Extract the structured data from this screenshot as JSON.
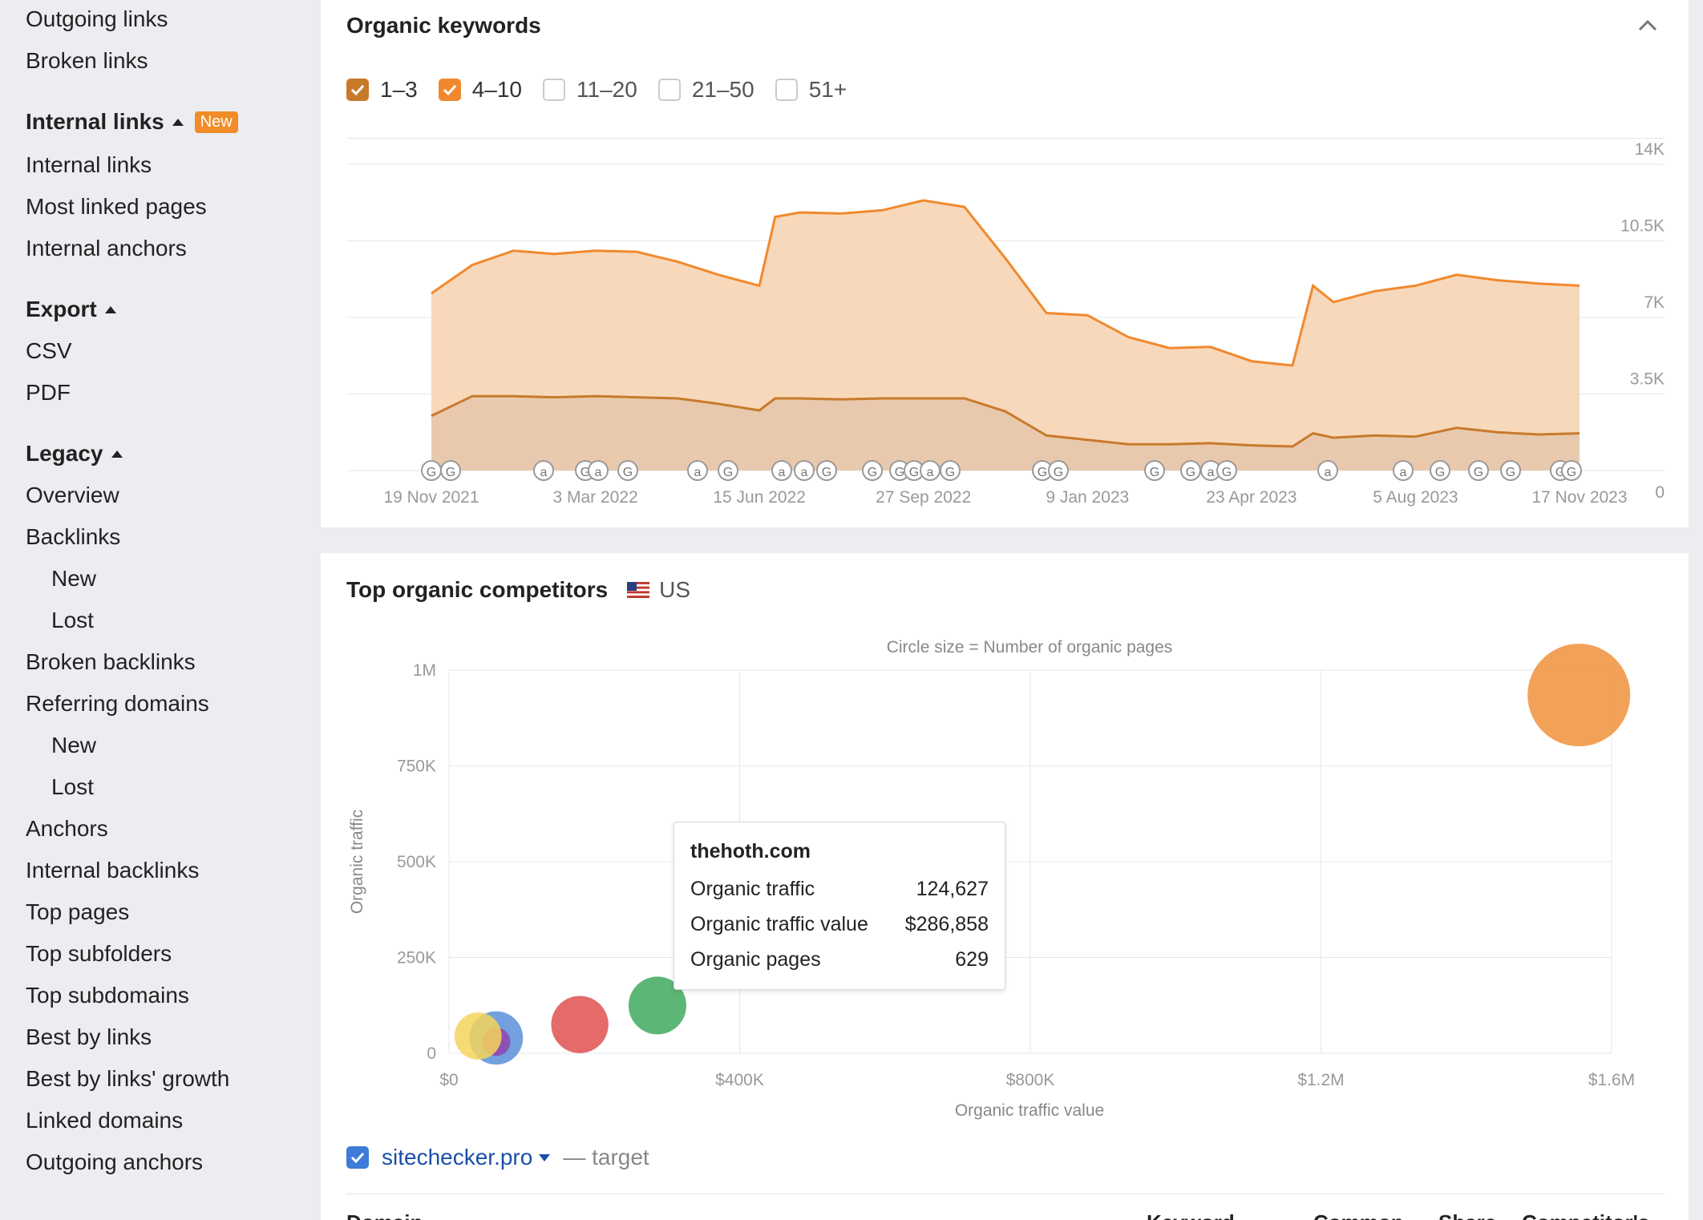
{
  "sidebar": {
    "items_top": [
      "Outgoing links",
      "Broken links"
    ],
    "internal_links": {
      "heading": "Internal links",
      "badge": "New",
      "items": [
        "Internal links",
        "Most linked pages",
        "Internal anchors"
      ]
    },
    "export": {
      "heading": "Export",
      "items": [
        "CSV",
        "PDF"
      ]
    },
    "legacy": {
      "heading": "Legacy",
      "items": [
        "Overview",
        "Backlinks",
        "New",
        "Lost",
        "Broken backlinks",
        "Referring domains",
        "New",
        "Lost",
        "Anchors",
        "Internal backlinks",
        "Top pages",
        "Top subfolders",
        "Top subdomains",
        "Best by links",
        "Best by links' growth",
        "Linked domains",
        "Outgoing anchors"
      ]
    }
  },
  "organic_keywords": {
    "title": "Organic keywords",
    "filters": [
      {
        "label": "1–3",
        "checked": true,
        "color": "#c87a2b"
      },
      {
        "label": "4–10",
        "checked": true,
        "color": "#f0892e"
      },
      {
        "label": "11–20",
        "checked": false
      },
      {
        "label": "21–50",
        "checked": false
      },
      {
        "label": "51+",
        "checked": false
      }
    ],
    "marker_labels": [
      "G",
      "a"
    ]
  },
  "competitors": {
    "title": "Top organic competitors",
    "country": "US",
    "note": "Circle size = Number of organic pages",
    "tooltip": {
      "domain": "thehoth.com",
      "rows": [
        {
          "label": "Organic traffic",
          "value": "124,627"
        },
        {
          "label": "Organic traffic value",
          "value": "$286,858"
        },
        {
          "label": "Organic pages",
          "value": "629"
        }
      ]
    },
    "target": {
      "domain": "sitechecker.pro",
      "note": "— target"
    },
    "table_headers": [
      "Domain",
      "Keyword",
      "Common",
      "Share",
      "Competitor's"
    ]
  },
  "chart_data": [
    {
      "type": "area",
      "x_tick_labels": [
        "19 Nov 2021",
        "3 Mar 2022",
        "15 Jun 2022",
        "27 Sep 2022",
        "9 Jan 2023",
        "23 Apr 2023",
        "5 Aug 2023",
        "17 Nov 2023"
      ],
      "y_tick_labels": [
        "0",
        "3.5K",
        "7K",
        "10.5K",
        "14K"
      ],
      "ylim": [
        0,
        14000
      ],
      "x": [
        "2021-11-19",
        "2021-12-15",
        "2022-01-10",
        "2022-02-05",
        "2022-03-03",
        "2022-03-29",
        "2022-04-24",
        "2022-05-20",
        "2022-06-15",
        "2022-06-25",
        "2022-07-11",
        "2022-08-06",
        "2022-09-01",
        "2022-09-27",
        "2022-10-23",
        "2022-11-18",
        "2022-12-14",
        "2023-01-09",
        "2023-02-04",
        "2023-03-02",
        "2023-03-28",
        "2023-04-23",
        "2023-05-19",
        "2023-06-01",
        "2023-06-14",
        "2023-07-10",
        "2023-08-05",
        "2023-08-31",
        "2023-09-26",
        "2023-10-22",
        "2023-11-17"
      ],
      "series": [
        {
          "name": "1–3",
          "values": [
            2500,
            3400,
            3400,
            3350,
            3400,
            3350,
            3300,
            3050,
            2750,
            3300,
            3300,
            3250,
            3300,
            3300,
            3300,
            2700,
            1600,
            1400,
            1200,
            1200,
            1250,
            1150,
            1100,
            1700,
            1500,
            1600,
            1550,
            1950,
            1750,
            1650,
            1700
          ]
        },
        {
          "name": "4–10",
          "values": [
            5600,
            6000,
            6650,
            6550,
            6650,
            6650,
            6250,
            5900,
            5700,
            8300,
            8500,
            8500,
            8600,
            9050,
            8750,
            7000,
            5600,
            5700,
            4900,
            4400,
            4400,
            3850,
            3700,
            6750,
            6200,
            6600,
            6900,
            7000,
            6950,
            6900,
            6750
          ]
        }
      ]
    },
    {
      "type": "scatter",
      "title": "Top organic competitors",
      "subtitle": "Circle size = Number of organic pages",
      "xlabel": "Organic traffic value",
      "ylabel": "Organic traffic",
      "x_tick_labels": [
        "$0",
        "$400K",
        "$800K",
        "$1.2M",
        "$1.6M"
      ],
      "y_tick_labels": [
        "0",
        "250K",
        "500K",
        "750K",
        "1M"
      ],
      "xlim": [
        0,
        1600000
      ],
      "ylim": [
        0,
        1000000
      ],
      "points": [
        {
          "x": 65000,
          "y": 40000,
          "size": 540,
          "color": "#5b8fd9"
        },
        {
          "x": 65000,
          "y": 30000,
          "size": 150,
          "color": "#8e44ad"
        },
        {
          "x": 40000,
          "y": 45000,
          "size": 420,
          "color": "#f5d45a"
        },
        {
          "x": 180000,
          "y": 75000,
          "size": 620,
          "color": "#e05050"
        },
        {
          "x": 286858,
          "y": 124627,
          "size": 629,
          "color": "#3fa95d"
        },
        {
          "x": 1555000,
          "y": 935000,
          "size": 1990,
          "color": "#f0923b"
        }
      ]
    }
  ]
}
